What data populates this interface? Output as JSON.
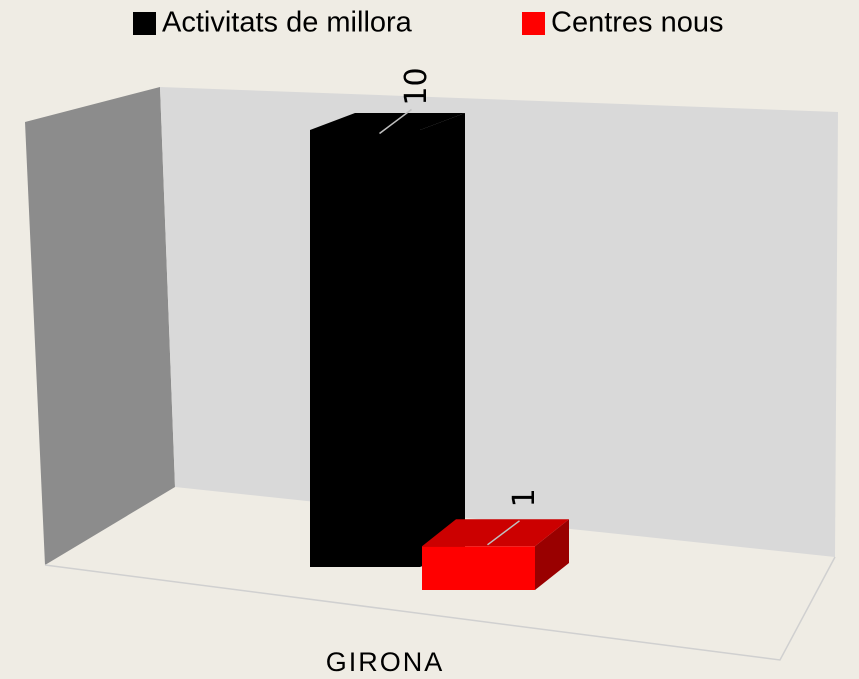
{
  "chart_data": {
    "type": "bar3d",
    "categories": [
      "GIRONA"
    ],
    "series": [
      {
        "name": "Activitats de millora",
        "color": "#000000",
        "values": [
          10
        ]
      },
      {
        "name": "Centres nous",
        "color": "#ff0000",
        "values": [
          1
        ]
      }
    ],
    "legend": "top"
  }
}
